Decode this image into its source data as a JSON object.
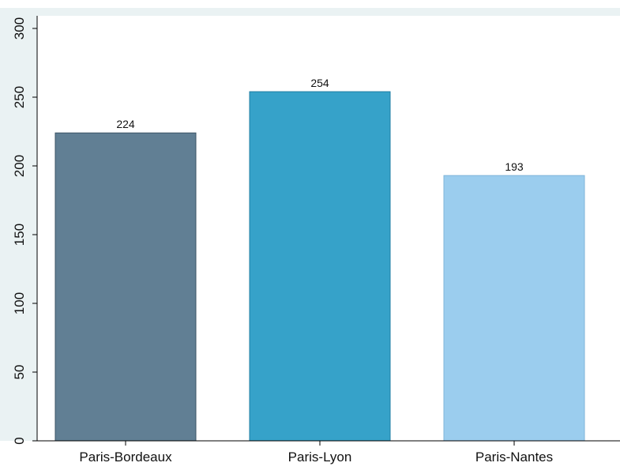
{
  "chart_data": {
    "type": "bar",
    "categories": [
      "Paris-Bordeaux",
      "Paris-Lyon",
      "Paris-Nantes"
    ],
    "values": [
      224,
      254,
      193
    ],
    "data_labels": [
      "224",
      "254",
      "193"
    ],
    "ylim": [
      0,
      300
    ],
    "yticks": [
      0,
      50,
      100,
      150,
      200,
      250,
      300
    ],
    "title": "",
    "xlabel": "",
    "ylabel": "",
    "grid": false,
    "legend": "none",
    "colors": {
      "bars": [
        "#617f94",
        "#36a2c9",
        "#9bcdee"
      ],
      "bar_stroke": [
        "#3c5466",
        "#1f7ea3",
        "#7fb5da"
      ],
      "plot_background": "#eaf2f3",
      "plot_area": "#ffffff",
      "axis": "#000000"
    }
  }
}
